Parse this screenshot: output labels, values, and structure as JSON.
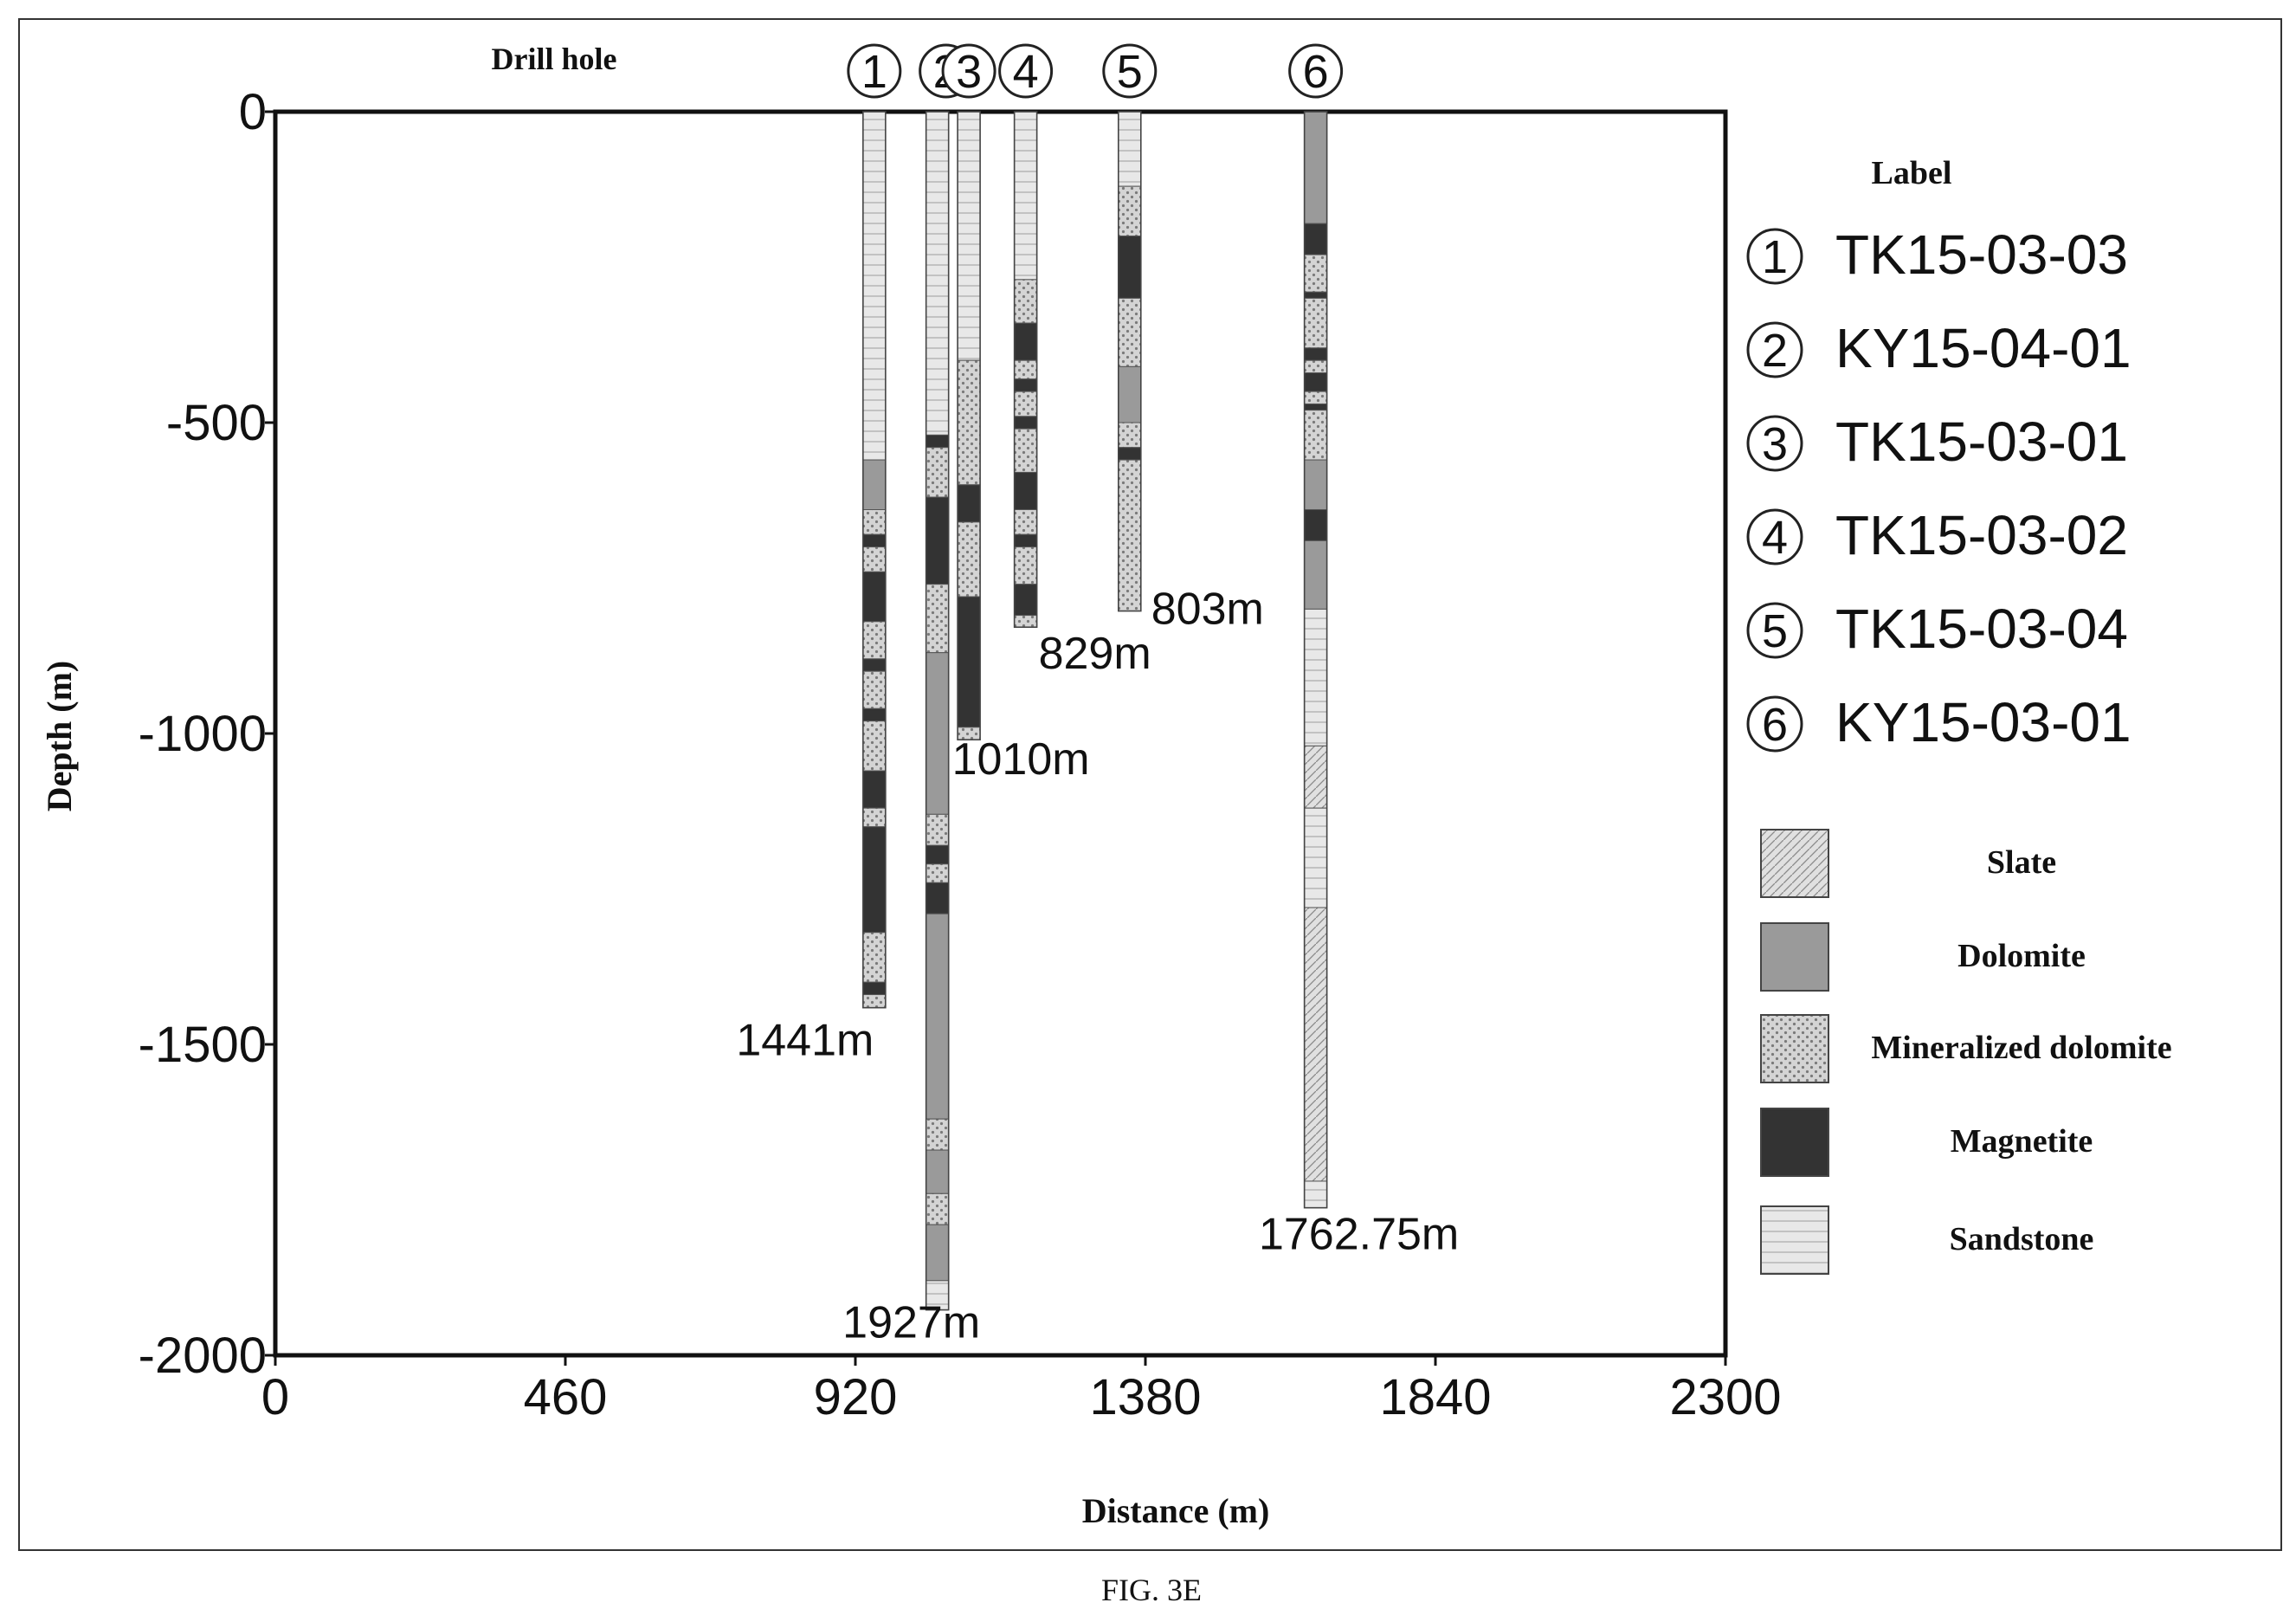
{
  "chart_data": {
    "type": "well-log column section",
    "header_label": "Drill hole",
    "xlabel": "Distance (m)",
    "ylabel": "Depth (m)",
    "xlim": [
      0,
      2300
    ],
    "ylim": [
      -2000,
      0
    ],
    "xticks": [
      "0",
      "460",
      "920",
      "1380",
      "1840",
      "2300"
    ],
    "yticks": [
      "0",
      "-500",
      "-1000",
      "-1500",
      "-2000"
    ],
    "legend_title": "Label",
    "lithology_legend": [
      {
        "key": "slate",
        "label": "Slate"
      },
      {
        "key": "dolomite",
        "label": "Dolomite"
      },
      {
        "key": "mineralized",
        "label": "Mineralized dolomite"
      },
      {
        "key": "magnetite",
        "label": "Magnetite"
      },
      {
        "key": "sandstone",
        "label": "Sandstone"
      }
    ],
    "holes": [
      {
        "marker": "1",
        "name": "TK15-03-03",
        "x": 950,
        "depth": 1441,
        "depth_label": "1441m",
        "segments": [
          {
            "from": 0,
            "to": 560,
            "lith": "sandstone"
          },
          {
            "from": 560,
            "to": 640,
            "lith": "dolomite"
          },
          {
            "from": 640,
            "to": 680,
            "lith": "mineralized"
          },
          {
            "from": 680,
            "to": 700,
            "lith": "magnetite"
          },
          {
            "from": 700,
            "to": 740,
            "lith": "mineralized"
          },
          {
            "from": 740,
            "to": 820,
            "lith": "magnetite"
          },
          {
            "from": 820,
            "to": 880,
            "lith": "mineralized"
          },
          {
            "from": 880,
            "to": 900,
            "lith": "magnetite"
          },
          {
            "from": 900,
            "to": 960,
            "lith": "mineralized"
          },
          {
            "from": 960,
            "to": 980,
            "lith": "magnetite"
          },
          {
            "from": 980,
            "to": 1060,
            "lith": "mineralized"
          },
          {
            "from": 1060,
            "to": 1120,
            "lith": "magnetite"
          },
          {
            "from": 1120,
            "to": 1150,
            "lith": "mineralized"
          },
          {
            "from": 1150,
            "to": 1320,
            "lith": "magnetite"
          },
          {
            "from": 1320,
            "to": 1400,
            "lith": "mineralized"
          },
          {
            "from": 1400,
            "to": 1420,
            "lith": "magnetite"
          },
          {
            "from": 1420,
            "to": 1441,
            "lith": "mineralized"
          }
        ]
      },
      {
        "marker": "2",
        "name": "KY15-04-01",
        "x": 1050,
        "depth": 1927,
        "depth_label": "1927m",
        "segments": [
          {
            "from": 0,
            "to": 520,
            "lith": "sandstone"
          },
          {
            "from": 520,
            "to": 540,
            "lith": "magnetite"
          },
          {
            "from": 540,
            "to": 620,
            "lith": "mineralized"
          },
          {
            "from": 620,
            "to": 760,
            "lith": "magnetite"
          },
          {
            "from": 760,
            "to": 870,
            "lith": "mineralized"
          },
          {
            "from": 870,
            "to": 1130,
            "lith": "dolomite"
          },
          {
            "from": 1130,
            "to": 1180,
            "lith": "mineralized"
          },
          {
            "from": 1180,
            "to": 1210,
            "lith": "magnetite"
          },
          {
            "from": 1210,
            "to": 1240,
            "lith": "mineralized"
          },
          {
            "from": 1240,
            "to": 1290,
            "lith": "magnetite"
          },
          {
            "from": 1290,
            "to": 1620,
            "lith": "dolomite"
          },
          {
            "from": 1620,
            "to": 1670,
            "lith": "mineralized"
          },
          {
            "from": 1670,
            "to": 1740,
            "lith": "dolomite"
          },
          {
            "from": 1740,
            "to": 1790,
            "lith": "mineralized"
          },
          {
            "from": 1790,
            "to": 1880,
            "lith": "dolomite"
          },
          {
            "from": 1880,
            "to": 1927,
            "lith": "sandstone"
          }
        ]
      },
      {
        "marker": "3",
        "name": "TK15-03-01",
        "x": 1100,
        "depth": 1010,
        "depth_label": "1010m",
        "segments": [
          {
            "from": 0,
            "to": 400,
            "lith": "sandstone"
          },
          {
            "from": 400,
            "to": 600,
            "lith": "mineralized"
          },
          {
            "from": 600,
            "to": 660,
            "lith": "magnetite"
          },
          {
            "from": 660,
            "to": 780,
            "lith": "mineralized"
          },
          {
            "from": 780,
            "to": 990,
            "lith": "magnetite"
          },
          {
            "from": 990,
            "to": 1010,
            "lith": "mineralized"
          }
        ]
      },
      {
        "marker": "4",
        "name": "TK15-03-02",
        "x": 1190,
        "depth": 829,
        "depth_label": "829m",
        "segments": [
          {
            "from": 0,
            "to": 270,
            "lith": "sandstone"
          },
          {
            "from": 270,
            "to": 340,
            "lith": "mineralized"
          },
          {
            "from": 340,
            "to": 400,
            "lith": "magnetite"
          },
          {
            "from": 400,
            "to": 430,
            "lith": "mineralized"
          },
          {
            "from": 430,
            "to": 450,
            "lith": "magnetite"
          },
          {
            "from": 450,
            "to": 490,
            "lith": "mineralized"
          },
          {
            "from": 490,
            "to": 510,
            "lith": "magnetite"
          },
          {
            "from": 510,
            "to": 580,
            "lith": "mineralized"
          },
          {
            "from": 580,
            "to": 640,
            "lith": "magnetite"
          },
          {
            "from": 640,
            "to": 680,
            "lith": "mineralized"
          },
          {
            "from": 680,
            "to": 700,
            "lith": "magnetite"
          },
          {
            "from": 700,
            "to": 760,
            "lith": "mineralized"
          },
          {
            "from": 760,
            "to": 810,
            "lith": "magnetite"
          },
          {
            "from": 810,
            "to": 829,
            "lith": "mineralized"
          }
        ]
      },
      {
        "marker": "5",
        "name": "TK15-03-04",
        "x": 1355,
        "depth": 803,
        "depth_label": "803m",
        "segments": [
          {
            "from": 0,
            "to": 120,
            "lith": "sandstone"
          },
          {
            "from": 120,
            "to": 200,
            "lith": "mineralized"
          },
          {
            "from": 200,
            "to": 300,
            "lith": "magnetite"
          },
          {
            "from": 300,
            "to": 410,
            "lith": "mineralized"
          },
          {
            "from": 410,
            "to": 500,
            "lith": "dolomite"
          },
          {
            "from": 500,
            "to": 540,
            "lith": "mineralized"
          },
          {
            "from": 540,
            "to": 560,
            "lith": "magnetite"
          },
          {
            "from": 560,
            "to": 803,
            "lith": "mineralized"
          }
        ]
      },
      {
        "marker": "6",
        "name": "KY15-03-01",
        "x": 1650,
        "depth": 1762.75,
        "depth_label": "1762.75m",
        "segments": [
          {
            "from": 0,
            "to": 180,
            "lith": "dolomite"
          },
          {
            "from": 180,
            "to": 230,
            "lith": "magnetite"
          },
          {
            "from": 230,
            "to": 290,
            "lith": "mineralized"
          },
          {
            "from": 290,
            "to": 300,
            "lith": "magnetite"
          },
          {
            "from": 300,
            "to": 380,
            "lith": "mineralized"
          },
          {
            "from": 380,
            "to": 400,
            "lith": "magnetite"
          },
          {
            "from": 400,
            "to": 420,
            "lith": "mineralized"
          },
          {
            "from": 420,
            "to": 450,
            "lith": "magnetite"
          },
          {
            "from": 450,
            "to": 470,
            "lith": "mineralized"
          },
          {
            "from": 470,
            "to": 480,
            "lith": "magnetite"
          },
          {
            "from": 480,
            "to": 560,
            "lith": "mineralized"
          },
          {
            "from": 560,
            "to": 640,
            "lith": "dolomite"
          },
          {
            "from": 640,
            "to": 690,
            "lith": "magnetite"
          },
          {
            "from": 690,
            "to": 800,
            "lith": "dolomite"
          },
          {
            "from": 800,
            "to": 1020,
            "lith": "sandstone"
          },
          {
            "from": 1020,
            "to": 1120,
            "lith": "slate"
          },
          {
            "from": 1120,
            "to": 1280,
            "lith": "sandstone"
          },
          {
            "from": 1280,
            "to": 1720,
            "lith": "slate"
          },
          {
            "from": 1720,
            "to": 1762.75,
            "lith": "sandstone"
          }
        ]
      }
    ]
  },
  "figure_caption": "FIG. 3E",
  "colors": {
    "magnetite": "#333333",
    "dolomite": "#9a9a9a",
    "mineralized_bg": "#d2d2d2",
    "sandstone_bg": "#e6e6e6",
    "slate_bg": "#dedede"
  }
}
